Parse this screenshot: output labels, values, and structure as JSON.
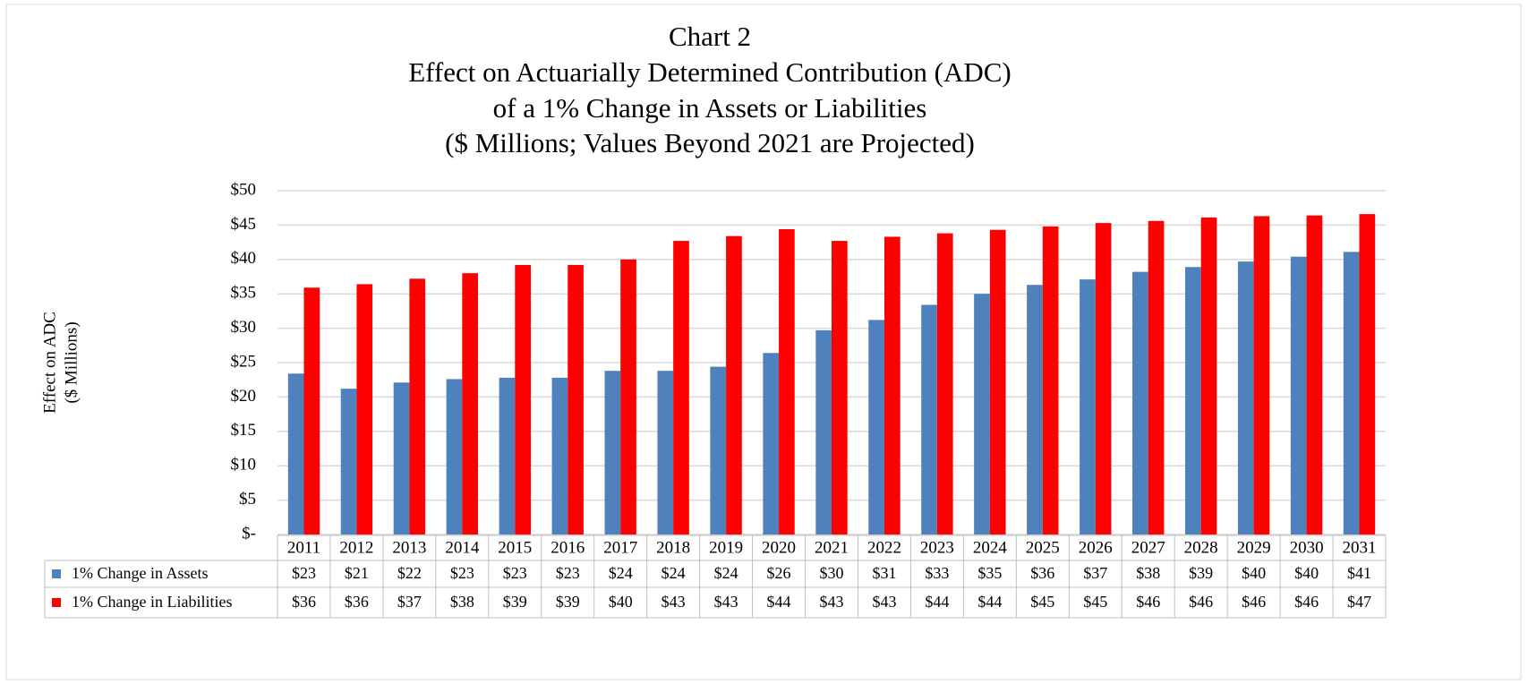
{
  "chart_data": {
    "type": "bar",
    "title": "Chart 2",
    "subtitle": [
      "Effect on Actuarially Determined Contribution (ADC)",
      "of a 1% Change in Assets or Liabilities",
      "($ Millions; Values Beyond 2021 are Projected)"
    ],
    "y_label": [
      "Effect on ADC",
      "($ Millions)"
    ],
    "categories": [
      "2011",
      "2012",
      "2013",
      "2014",
      "2015",
      "2016",
      "2017",
      "2018",
      "2019",
      "2020",
      "2021",
      "2022",
      "2023",
      "2024",
      "2025",
      "2026",
      "2027",
      "2028",
      "2029",
      "2030",
      "2031"
    ],
    "series": [
      {
        "name": "1% Change in Assets",
        "color": "#4f81bd",
        "values": [
          23.4,
          21.2,
          22.1,
          22.6,
          22.8,
          22.8,
          23.8,
          23.8,
          24.4,
          26.4,
          29.7,
          31.2,
          33.4,
          35.0,
          36.3,
          37.1,
          38.2,
          38.9,
          39.7,
          40.4,
          41.1
        ],
        "value_labels": [
          "$23",
          "$21",
          "$22",
          "$23",
          "$23",
          "$23",
          "$24",
          "$24",
          "$24",
          "$26",
          "$30",
          "$31",
          "$33",
          "$35",
          "$36",
          "$37",
          "$38",
          "$39",
          "$40",
          "$40",
          "$41"
        ]
      },
      {
        "name": "1% Change in Liabilities",
        "color": "#ff0000",
        "values": [
          35.9,
          36.4,
          37.2,
          38.0,
          39.2,
          39.2,
          40.0,
          42.7,
          43.4,
          44.4,
          42.7,
          43.3,
          43.8,
          44.3,
          44.8,
          45.3,
          45.6,
          46.1,
          46.3,
          46.4,
          46.6
        ],
        "value_labels": [
          "$36",
          "$36",
          "$37",
          "$38",
          "$39",
          "$39",
          "$40",
          "$43",
          "$43",
          "$44",
          "$43",
          "$43",
          "$44",
          "$44",
          "$45",
          "$45",
          "$46",
          "$46",
          "$46",
          "$46",
          "$47"
        ]
      }
    ],
    "ylim": [
      0,
      50
    ],
    "yticks": [
      {
        "value": 0,
        "label": "$-"
      },
      {
        "value": 5,
        "label": "$5"
      },
      {
        "value": 10,
        "label": "$10"
      },
      {
        "value": 15,
        "label": "$15"
      },
      {
        "value": 20,
        "label": "$20"
      },
      {
        "value": 25,
        "label": "$25"
      },
      {
        "value": 30,
        "label": "$30"
      },
      {
        "value": 35,
        "label": "$35"
      },
      {
        "value": 40,
        "label": "$40"
      },
      {
        "value": 45,
        "label": "$45"
      },
      {
        "value": 50,
        "label": "$50"
      }
    ],
    "grid": true
  }
}
